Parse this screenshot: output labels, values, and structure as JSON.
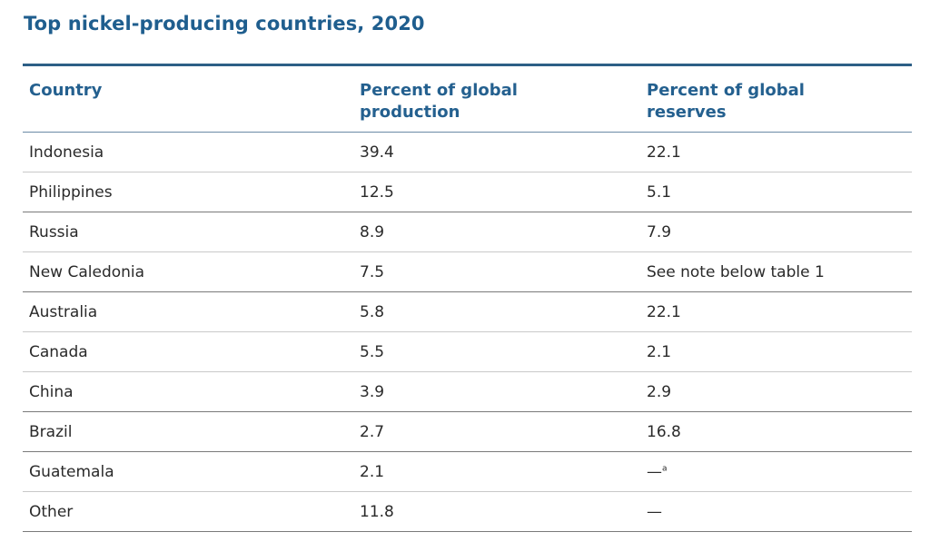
{
  "title": "Top nickel-producing countries, 2020",
  "columns": [
    "Country",
    "Percent of global\nproduction",
    "Percent of global\nreserves"
  ],
  "rows": [
    {
      "country": "Indonesia",
      "production": "39.4",
      "reserves": "22.1",
      "reserves_note": ""
    },
    {
      "country": "Philippines",
      "production": "12.5",
      "reserves": "5.1",
      "reserves_note": ""
    },
    {
      "country": "Russia",
      "production": "8.9",
      "reserves": "7.9",
      "reserves_note": ""
    },
    {
      "country": "New Caledonia",
      "production": "7.5",
      "reserves": "See note below table 1",
      "reserves_note": ""
    },
    {
      "country": "Australia",
      "production": "5.8",
      "reserves": "22.1",
      "reserves_note": ""
    },
    {
      "country": "Canada",
      "production": "5.5",
      "reserves": "2.1",
      "reserves_note": ""
    },
    {
      "country": "China",
      "production": "3.9",
      "reserves": "2.9",
      "reserves_note": ""
    },
    {
      "country": "Brazil",
      "production": "2.7",
      "reserves": "16.8",
      "reserves_note": ""
    },
    {
      "country": "Guatemala",
      "production": "2.1",
      "reserves": "—",
      "reserves_note": "a"
    },
    {
      "country": "Other",
      "production": "11.8",
      "reserves": "—",
      "reserves_note": ""
    }
  ],
  "colors": {
    "title": "#1f5e8e",
    "header_text": "#24608f",
    "rule": "#2d5f86",
    "body_text": "#2a2a2a"
  }
}
